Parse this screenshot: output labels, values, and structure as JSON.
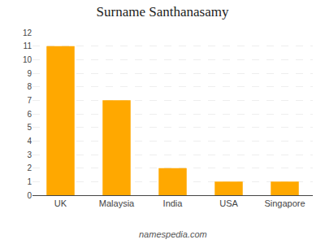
{
  "chart_data": {
    "type": "bar",
    "title": "Surname Santhanasamy",
    "categories": [
      "UK",
      "Malaysia",
      "India",
      "USA",
      "Singapore"
    ],
    "values": [
      11,
      7,
      2,
      1,
      1
    ],
    "color": "#FFA800",
    "ylim": [
      0,
      12
    ],
    "yticks": [
      0,
      1,
      2,
      3,
      4,
      5,
      6,
      7,
      8,
      9,
      10,
      11,
      12
    ],
    "grid": true,
    "annotations": [
      "namespedia.com"
    ]
  }
}
